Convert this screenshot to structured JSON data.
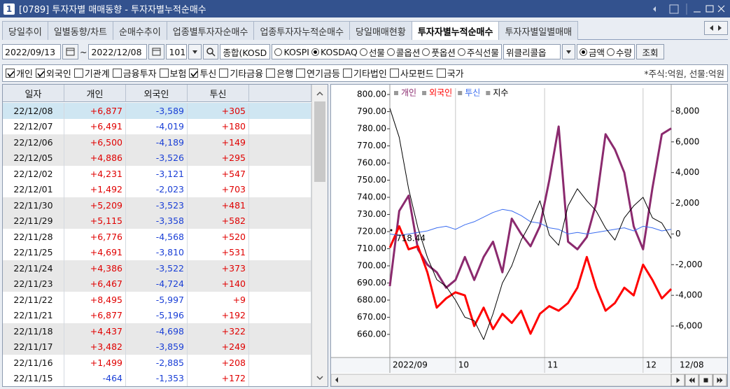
{
  "window": {
    "icon": "1",
    "title": "[0789] 투자자별 매매동향 - 투자자별누적순매수"
  },
  "tabs": [
    {
      "label": "당일추이",
      "active": false
    },
    {
      "label": "일별동향/차트",
      "active": false
    },
    {
      "label": "순매수추이",
      "active": false
    },
    {
      "label": "업종별투자자순매수",
      "active": false
    },
    {
      "label": "업종투자자누적순매수",
      "active": false
    },
    {
      "label": "당일매매현황",
      "active": false
    },
    {
      "label": "투자자별누적순매수",
      "active": true
    },
    {
      "label": "투자자별일별매매",
      "active": false
    }
  ],
  "toolbar": {
    "start_date": "2022/09/13",
    "separator": "~",
    "end_date": "2022/12/08",
    "code": "101",
    "market": "종합(KOSD",
    "radios": [
      {
        "label": "KOSPI",
        "checked": false
      },
      {
        "label": "KOSDAQ",
        "checked": true
      },
      {
        "label": "선물",
        "checked": false
      },
      {
        "label": "콜옵션",
        "checked": false
      },
      {
        "label": "풋옵션",
        "checked": false
      },
      {
        "label": "주식선물",
        "checked": false
      }
    ],
    "dropdown": "위클리콜옵",
    "unit_radios": [
      {
        "label": "금액",
        "checked": true
      },
      {
        "label": "수량",
        "checked": false
      }
    ],
    "button": "조회"
  },
  "filters": {
    "checkboxes": [
      {
        "label": "개인",
        "checked": true
      },
      {
        "label": "외국인",
        "checked": true
      },
      {
        "label": "기관계",
        "checked": false
      },
      {
        "label": "금융투자",
        "checked": false
      },
      {
        "label": "보험",
        "checked": false
      },
      {
        "label": "투신",
        "checked": true
      },
      {
        "label": "기타금융",
        "checked": false
      },
      {
        "label": "은행",
        "checked": false
      },
      {
        "label": "연기금등",
        "checked": false
      },
      {
        "label": "기타법인",
        "checked": false
      },
      {
        "label": "사모펀드",
        "checked": false
      },
      {
        "label": "국가",
        "checked": false
      }
    ],
    "note": "*주식:억원, 선물:억원"
  },
  "table": {
    "columns": [
      "일자",
      "개인",
      "외국인",
      "투신"
    ],
    "rows": [
      [
        "22/12/08",
        "+6,877",
        "-3,589",
        "+305"
      ],
      [
        "22/12/07",
        "+6,491",
        "-4,019",
        "+180"
      ],
      [
        "22/12/06",
        "+6,500",
        "-4,189",
        "+149"
      ],
      [
        "22/12/05",
        "+4,886",
        "-3,526",
        "+295"
      ],
      [
        "22/12/02",
        "+4,231",
        "-3,121",
        "+547"
      ],
      [
        "22/12/01",
        "+1,492",
        "-2,023",
        "+703"
      ],
      [
        "22/11/30",
        "+5,209",
        "-3,523",
        "+481"
      ],
      [
        "22/11/29",
        "+5,115",
        "-3,358",
        "+582"
      ],
      [
        "22/11/28",
        "+6,776",
        "-4,568",
        "+520"
      ],
      [
        "22/11/25",
        "+4,691",
        "-3,810",
        "+531"
      ],
      [
        "22/11/24",
        "+4,386",
        "-3,522",
        "+373"
      ],
      [
        "22/11/23",
        "+6,467",
        "-4,724",
        "+140"
      ],
      [
        "22/11/22",
        "+8,495",
        "-5,997",
        "+9"
      ],
      [
        "22/11/21",
        "+6,877",
        "-5,196",
        "+192"
      ],
      [
        "22/11/18",
        "+4,437",
        "-4,698",
        "+322"
      ],
      [
        "22/11/17",
        "+3,482",
        "-3,859",
        "+249"
      ],
      [
        "22/11/16",
        "+1,499",
        "-2,885",
        "+208"
      ],
      [
        "22/11/15",
        "-464",
        "-1,353",
        "+172"
      ]
    ]
  },
  "chart_data": {
    "type": "line",
    "x": [
      0,
      2,
      4,
      6,
      8,
      10,
      12,
      14,
      16,
      18,
      20,
      22,
      24,
      26,
      28,
      30,
      32,
      34,
      36,
      38,
      40,
      42,
      44,
      46,
      48,
      50,
      52,
      54,
      56,
      58,
      60
    ],
    "xlim": [
      0,
      60
    ],
    "xticks": [
      {
        "value": 0,
        "label": "2022/09"
      },
      {
        "value": 14,
        "label": "10"
      },
      {
        "value": 33,
        "label": "11"
      },
      {
        "value": 54,
        "label": "12"
      }
    ],
    "x_end_label": "12/08",
    "ylim": [
      646.5,
      803.7
    ],
    "yticks": [
      {
        "value": 660,
        "label": "660.00"
      },
      {
        "value": 670,
        "label": "670.00"
      },
      {
        "value": 680,
        "label": "680.00"
      },
      {
        "value": 690,
        "label": "690.00"
      },
      {
        "value": 700,
        "label": "700.00"
      },
      {
        "value": 710,
        "label": "710.00"
      },
      {
        "value": 720,
        "label": "720.00"
      },
      {
        "value": 730,
        "label": "730.00"
      },
      {
        "value": 740,
        "label": "740.00"
      },
      {
        "value": 750,
        "label": "750.00"
      },
      {
        "value": 760,
        "label": "760.00"
      },
      {
        "value": 770,
        "label": "770.00"
      },
      {
        "value": 780,
        "label": "780.00"
      },
      {
        "value": 790,
        "label": "790.00"
      },
      {
        "value": 800,
        "label": "800.00"
      }
    ],
    "y2lim": [
      -8050,
      9500
    ],
    "y2ticks": [
      {
        "value": -6000,
        "label": "-6,000"
      },
      {
        "value": -4000,
        "label": "-4,000"
      },
      {
        "value": -2000,
        "label": "-2,000"
      },
      0,
      {
        "value": 2000,
        "label": "2,000"
      },
      {
        "value": 4000,
        "label": "4,000"
      },
      {
        "value": 6000,
        "label": "6,000"
      },
      {
        "value": 8000,
        "label": "8,000"
      }
    ],
    "annotation": "718.44",
    "series": [
      {
        "name": "개인",
        "color": "#8b2a6e",
        "axis": "y2",
        "values": [
          -3400,
          1500,
          2500,
          -1000,
          -2000,
          -2500,
          -3500,
          -3000,
          -1500,
          -3000,
          -1500,
          -500,
          -2500,
          1000,
          0,
          -800,
          500,
          3500,
          7000,
          -500,
          -1000,
          -200,
          2000,
          6500,
          5500,
          4000,
          500,
          -1000,
          3000,
          6500,
          6877
        ]
      },
      {
        "name": "외국인",
        "color": "#ff0000",
        "axis": "y2",
        "values": [
          -900,
          500,
          -1000,
          -800,
          -2500,
          -4800,
          -4200,
          -3800,
          -4000,
          -6000,
          -4800,
          -6200,
          -5200,
          -5800,
          -5000,
          -6500,
          -5200,
          -4700,
          -5000,
          -4500,
          -3500,
          -1500,
          -3500,
          -5000,
          -4500,
          -3500,
          -4000,
          -2000,
          -3000,
          -4200,
          -3589
        ]
      },
      {
        "name": "투신",
        "color": "#3a6cf0",
        "axis": "y2",
        "values": [
          0,
          -100,
          0,
          100,
          200,
          400,
          500,
          300,
          600,
          800,
          1100,
          1400,
          1600,
          1500,
          1200,
          800,
          700,
          400,
          300,
          0,
          100,
          0,
          100,
          200,
          300,
          400,
          200,
          500,
          400,
          200,
          305
        ]
      },
      {
        "name": "지수",
        "color": "#000000",
        "values": [
          792,
          775,
          745,
          722,
          705,
          692,
          688,
          680,
          670,
          668,
          657,
          672,
          690,
          700,
          715,
          725,
          738,
          718,
          712,
          735,
          745,
          738,
          732,
          722,
          715,
          728,
          735,
          740,
          728,
          725,
          716
        ]
      }
    ]
  }
}
